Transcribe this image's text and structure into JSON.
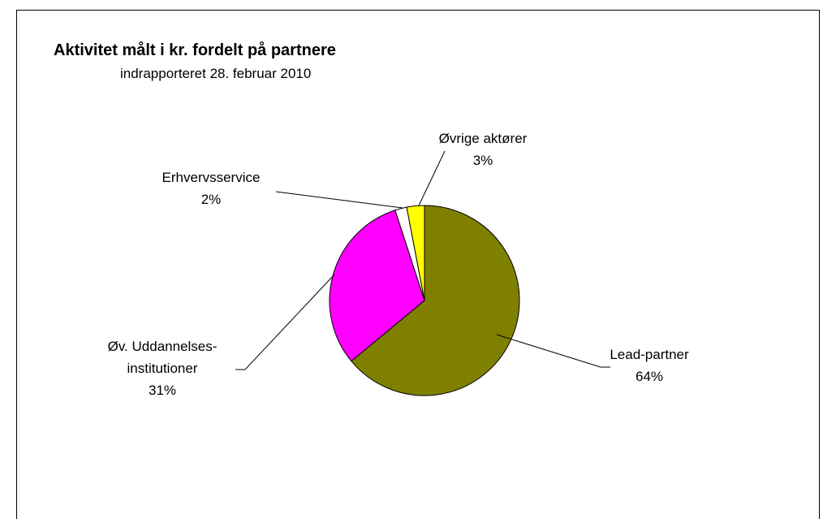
{
  "chart_data": {
    "type": "pie",
    "title": "Aktivitet målt i kr. fordelt på partnere",
    "subtitle": "indrapporteret 28. februar 2010",
    "categories": [
      "Lead-partner",
      "Øv. Uddannelses-\ninstitutioner",
      "Erhvervsservice",
      "Øvrige aktører"
    ],
    "values": [
      64,
      31,
      2,
      3
    ],
    "value_labels": [
      "64%",
      "31%",
      "2%",
      "3%"
    ],
    "colors": [
      "#808000",
      "#ff00ff",
      "#ffffff",
      "#ffff00"
    ]
  }
}
